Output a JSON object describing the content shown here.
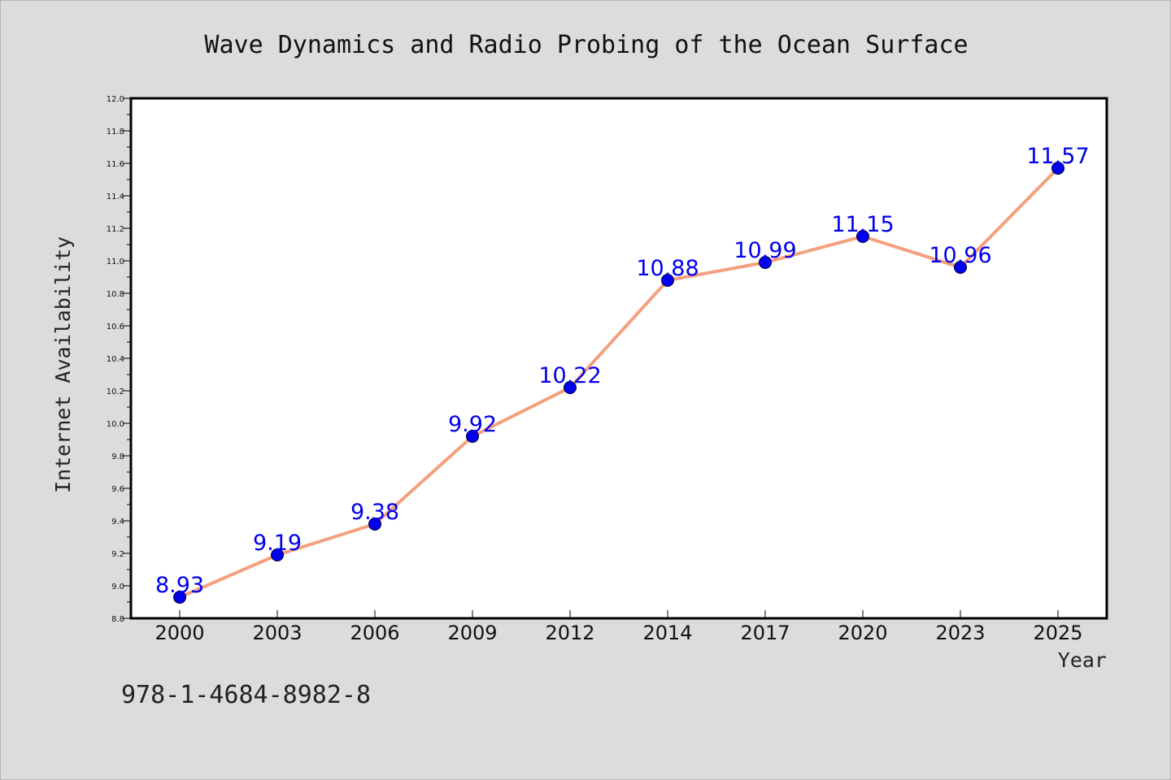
{
  "chart_data": {
    "type": "line",
    "title": "Wave Dynamics and Radio Probing of the Ocean Surface",
    "xlabel": "Year",
    "ylabel": "Internet Availability",
    "categories": [
      "2000",
      "2003",
      "2006",
      "2009",
      "2012",
      "2014",
      "2017",
      "2020",
      "2023",
      "2025"
    ],
    "series": [
      {
        "values": [
          8.93,
          9.19,
          9.38,
          9.92,
          10.22,
          10.88,
          10.99,
          11.15,
          10.96,
          11.57
        ],
        "data_labels": [
          "8.93",
          "9.19",
          "9.38",
          "9.92",
          "10.22",
          "10.88",
          "10.99",
          "11.15",
          "10.96",
          "11.57"
        ],
        "line_color": "#f4a07e",
        "marker_color": "#0000ee",
        "label_color": "#0000ee"
      }
    ],
    "ylim": [
      8.8,
      12.0
    ],
    "yticks": [
      "8.8",
      "9.0",
      "9.2",
      "9.4",
      "9.6",
      "9.8",
      "10.0",
      "10.2",
      "10.4",
      "10.6",
      "10.8",
      "11.0",
      "11.2",
      "11.4",
      "11.6",
      "11.8",
      "12.0"
    ],
    "grid": false,
    "legend": "none"
  },
  "footnote": "978-1-4684-8982-8",
  "colors": {
    "background": "#dcdcdc",
    "plot_area": "#ffffff"
  }
}
